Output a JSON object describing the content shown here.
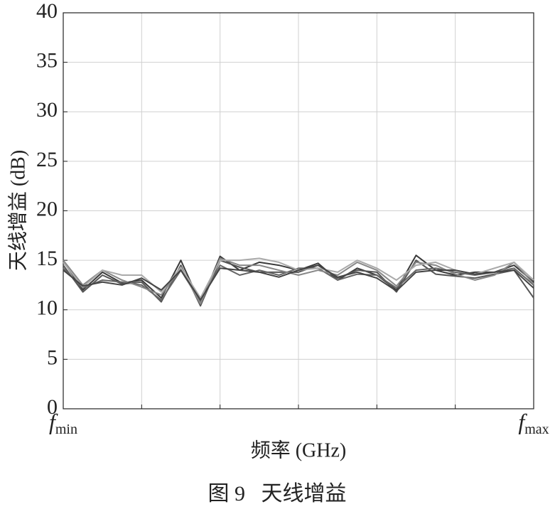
{
  "chart_data": {
    "type": "line",
    "y_label": "天线增益 (dB)",
    "x_label": "频率 (GHz)",
    "caption": "图 9   天线增益",
    "x": [
      0,
      1,
      2,
      3,
      4,
      5,
      6,
      7,
      8,
      9,
      10,
      11,
      12,
      13,
      14,
      15,
      16,
      17,
      18,
      19,
      20,
      21,
      22,
      23,
      24
    ],
    "xlim": [
      0,
      24
    ],
    "xticks": [
      {
        "value": 0,
        "label": "f",
        "subscript": "min"
      },
      {
        "value": 4,
        "label": null
      },
      {
        "value": 8,
        "label": null
      },
      {
        "value": 12,
        "label": null
      },
      {
        "value": 16,
        "label": null
      },
      {
        "value": 20,
        "label": null
      },
      {
        "value": 24,
        "label": "f",
        "subscript": "max"
      }
    ],
    "ylim": [
      0,
      40
    ],
    "yticks": [
      0,
      5,
      10,
      15,
      20,
      25,
      30,
      35,
      40
    ],
    "grid": true,
    "series": [
      {
        "color": "#3a3a3a",
        "values": [
          14.9,
          12.0,
          13.8,
          12.7,
          13.0,
          11.2,
          15.0,
          10.6,
          15.4,
          14.0,
          14.8,
          14.5,
          14.0,
          14.7,
          13.0,
          14.2,
          13.5,
          12.0,
          15.5,
          14.0,
          13.5,
          13.8,
          13.8,
          14.5,
          12.8
        ]
      },
      {
        "color": "#555555",
        "values": [
          14.5,
          11.8,
          13.5,
          12.6,
          12.8,
          10.8,
          14.5,
          10.4,
          15.0,
          14.3,
          13.8,
          13.8,
          13.8,
          14.5,
          13.2,
          14.0,
          13.8,
          11.8,
          15.0,
          13.6,
          13.4,
          13.2,
          13.6,
          14.0,
          11.2
        ]
      },
      {
        "color": "#666666",
        "values": [
          14.2,
          12.2,
          13.0,
          12.8,
          12.5,
          11.0,
          14.0,
          10.8,
          14.5,
          13.5,
          14.0,
          13.5,
          14.2,
          14.2,
          13.0,
          13.6,
          13.5,
          12.2,
          14.0,
          14.2,
          13.8,
          13.5,
          13.8,
          14.2,
          12.5
        ]
      },
      {
        "color": "#888888",
        "values": [
          15.0,
          12.5,
          14.0,
          13.0,
          12.3,
          11.5,
          14.2,
          10.6,
          15.2,
          14.5,
          14.5,
          14.0,
          13.5,
          14.0,
          13.5,
          14.8,
          14.0,
          12.4,
          14.8,
          14.5,
          13.6,
          13.0,
          13.5,
          14.8,
          12.6
        ]
      },
      {
        "color": "#aaaaaa",
        "values": [
          14.8,
          12.3,
          14.0,
          13.5,
          13.5,
          11.8,
          14.3,
          11.2,
          15.0,
          15.0,
          15.2,
          14.8,
          14.0,
          14.2,
          13.8,
          15.0,
          14.2,
          13.0,
          14.5,
          14.8,
          14.0,
          13.6,
          14.2,
          14.8,
          13.0
        ]
      },
      {
        "color": "#444444",
        "values": [
          14.0,
          12.4,
          12.8,
          12.5,
          13.2,
          12.0,
          14.0,
          11.0,
          14.2,
          14.0,
          13.8,
          13.3,
          14.0,
          14.5,
          13.3,
          13.8,
          13.2,
          11.9,
          13.8,
          14.0,
          14.0,
          13.6,
          13.8,
          14.0,
          12.2
        ]
      }
    ]
  }
}
